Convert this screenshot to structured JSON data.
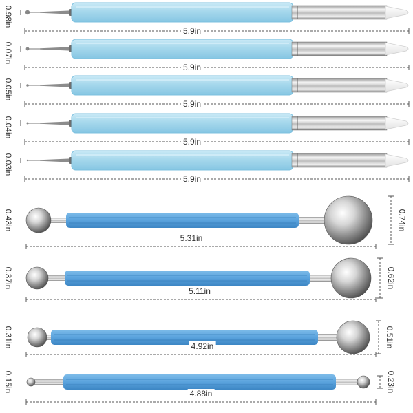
{
  "colors": {
    "pen_handle": "#a6d8ec",
    "pen_handle_edge": "#7cc0df",
    "tool_handle": "#5aa3dd",
    "tool_handle_dark": "#3d86c4",
    "metal_light": "#f6f6f6",
    "metal_dark": "#6f6f6f",
    "silicone_tip": "#f5f5f5",
    "dim_line": "#555555",
    "text": "#333333"
  },
  "pens": [
    {
      "tip_diameter": "0.98in",
      "length": "5.9in"
    },
    {
      "tip_diameter": "0.07in",
      "length": "5.9in"
    },
    {
      "tip_diameter": "0.05in",
      "length": "5.9in"
    },
    {
      "tip_diameter": "0.04in",
      "length": "5.9in"
    },
    {
      "tip_diameter": "0.03in",
      "length": "5.9in"
    }
  ],
  "tools": [
    {
      "small_ball": "0.43in",
      "large_ball": "0.74in",
      "length": "5.31in"
    },
    {
      "small_ball": "0.37in",
      "large_ball": "0.62in",
      "length": "5.11in"
    },
    {
      "small_ball": "0.31in",
      "large_ball": "0.51in",
      "length": "4.92in"
    },
    {
      "small_ball": "0.15in",
      "large_ball": "0.23in",
      "length": "4.88in"
    }
  ]
}
